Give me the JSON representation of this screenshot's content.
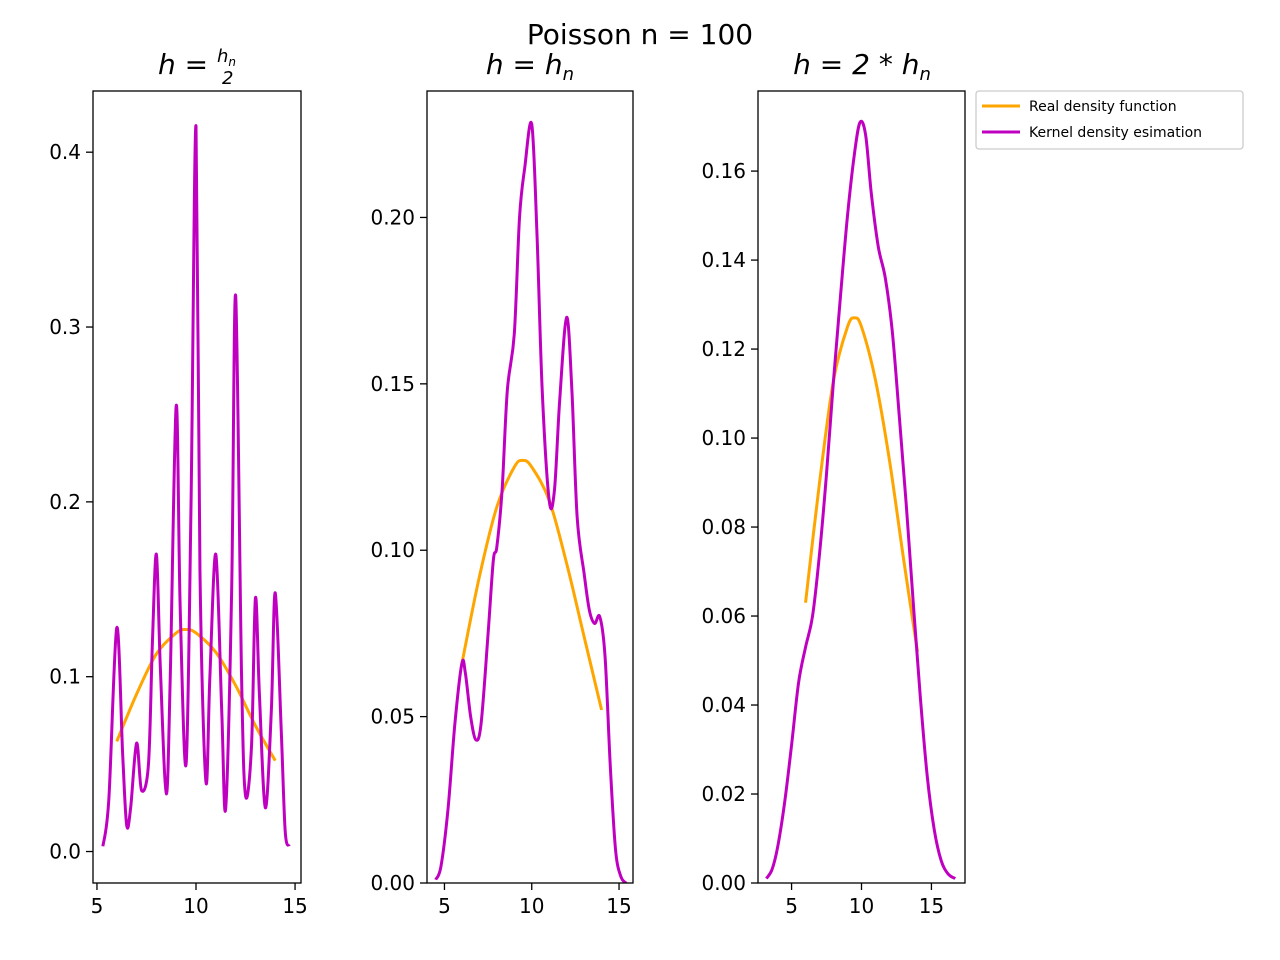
{
  "figure": {
    "suptitle": "Poisson n = 100"
  },
  "colors": {
    "real": "#FFA500",
    "kde": "#C000C0"
  },
  "legend": {
    "placement": "upper-left outside, right of third panel",
    "items": [
      {
        "label": "Real density function",
        "color": "#FFA500"
      },
      {
        "label": "Kernel density esimation",
        "color": "#C000C0"
      }
    ]
  },
  "chart_data": [
    {
      "type": "line",
      "title": "h = hₙ/2",
      "xlim": [
        4.8,
        15.3
      ],
      "ylim": [
        -0.018,
        0.435
      ],
      "xticks": [
        5,
        10,
        15
      ],
      "yticks": [
        0.0,
        0.1,
        0.2,
        0.3,
        0.4
      ],
      "ytick_labels": [
        "0.0",
        "0.1",
        "0.2",
        "0.3",
        "0.4"
      ],
      "series": [
        {
          "name": "Real density function",
          "x": [
            6,
            7,
            8,
            9,
            9.5,
            10,
            11,
            12,
            13,
            14
          ],
          "y": [
            0.063,
            0.09,
            0.113,
            0.125,
            0.127,
            0.125,
            0.114,
            0.095,
            0.072,
            0.052
          ]
        },
        {
          "name": "Kernel density esimation",
          "x": [
            5.3,
            5.6,
            6.0,
            6.3,
            6.5,
            6.7,
            7.0,
            7.25,
            7.6,
            7.8,
            8.0,
            8.2,
            8.5,
            8.7,
            9.0,
            9.2,
            9.5,
            9.75,
            10.0,
            10.2,
            10.5,
            10.7,
            11.0,
            11.3,
            11.5,
            11.8,
            12.0,
            12.3,
            12.5,
            12.8,
            13.0,
            13.2,
            13.5,
            13.8,
            14.0,
            14.3,
            14.5,
            14.7
          ],
          "y": [
            0.003,
            0.03,
            0.128,
            0.055,
            0.015,
            0.025,
            0.062,
            0.035,
            0.05,
            0.12,
            0.17,
            0.105,
            0.033,
            0.1,
            0.255,
            0.14,
            0.05,
            0.2,
            0.415,
            0.16,
            0.04,
            0.1,
            0.17,
            0.08,
            0.025,
            0.15,
            0.318,
            0.1,
            0.032,
            0.06,
            0.145,
            0.09,
            0.025,
            0.08,
            0.148,
            0.07,
            0.012,
            0.003
          ]
        }
      ]
    },
    {
      "type": "line",
      "title": "h = hₙ",
      "xlim": [
        4.0,
        15.8
      ],
      "ylim": [
        0.0,
        0.238
      ],
      "xticks": [
        5,
        10,
        15
      ],
      "yticks": [
        0.0,
        0.05,
        0.1,
        0.15,
        0.2
      ],
      "ytick_labels": [
        "0.00",
        "0.05",
        "0.10",
        "0.15",
        "0.20"
      ],
      "series": [
        {
          "name": "Real density function",
          "x": [
            6,
            7,
            8,
            9,
            9.5,
            10,
            11,
            12,
            13,
            14
          ],
          "y": [
            0.066,
            0.092,
            0.113,
            0.125,
            0.127,
            0.125,
            0.115,
            0.096,
            0.074,
            0.052
          ]
        },
        {
          "name": "Kernel density esimation",
          "x": [
            4.5,
            4.8,
            5.2,
            5.6,
            6.0,
            6.2,
            6.5,
            6.8,
            7.1,
            7.5,
            7.8,
            8.0,
            8.3,
            8.6,
            9.0,
            9.3,
            9.6,
            10.0,
            10.3,
            10.6,
            11.0,
            11.3,
            11.6,
            12.0,
            12.3,
            12.6,
            13.0,
            13.3,
            13.6,
            13.9,
            14.2,
            14.5,
            14.8,
            15.1,
            15.4
          ],
          "y": [
            0.001,
            0.005,
            0.022,
            0.048,
            0.066,
            0.063,
            0.05,
            0.043,
            0.048,
            0.075,
            0.097,
            0.101,
            0.118,
            0.148,
            0.165,
            0.2,
            0.215,
            0.228,
            0.195,
            0.148,
            0.115,
            0.118,
            0.145,
            0.17,
            0.148,
            0.11,
            0.093,
            0.082,
            0.078,
            0.08,
            0.068,
            0.035,
            0.01,
            0.002,
            0.0
          ]
        }
      ]
    },
    {
      "type": "line",
      "title": "h = 2 * hₙ",
      "xlim": [
        2.6,
        17.4
      ],
      "ylim": [
        0.0,
        0.178
      ],
      "xticks": [
        5,
        10,
        15
      ],
      "yticks": [
        0.0,
        0.02,
        0.04,
        0.06,
        0.08,
        0.1,
        0.12,
        0.14,
        0.16
      ],
      "ytick_labels": [
        "0.00",
        "0.02",
        "0.04",
        "0.06",
        "0.08",
        "0.10",
        "0.12",
        "0.14",
        "0.16"
      ],
      "series": [
        {
          "name": "Real density function",
          "x": [
            6,
            7,
            8,
            9,
            9.5,
            10,
            11,
            12,
            13,
            14
          ],
          "y": [
            0.063,
            0.09,
            0.113,
            0.125,
            0.127,
            0.125,
            0.113,
            0.095,
            0.073,
            0.052
          ]
        },
        {
          "name": "Kernel density esimation",
          "x": [
            3.2,
            3.6,
            4.0,
            4.5,
            5.0,
            5.5,
            6.0,
            6.5,
            7.0,
            7.5,
            8.0,
            8.5,
            9.0,
            9.5,
            9.9,
            10.3,
            10.7,
            11.2,
            11.7,
            12.2,
            12.7,
            13.2,
            13.7,
            14.2,
            14.7,
            15.2,
            15.7,
            16.2,
            16.7
          ],
          "y": [
            0.001,
            0.003,
            0.008,
            0.018,
            0.031,
            0.045,
            0.053,
            0.06,
            0.074,
            0.092,
            0.113,
            0.132,
            0.15,
            0.164,
            0.171,
            0.168,
            0.155,
            0.143,
            0.136,
            0.124,
            0.105,
            0.085,
            0.063,
            0.042,
            0.024,
            0.012,
            0.005,
            0.002,
            0.001
          ]
        }
      ]
    }
  ]
}
